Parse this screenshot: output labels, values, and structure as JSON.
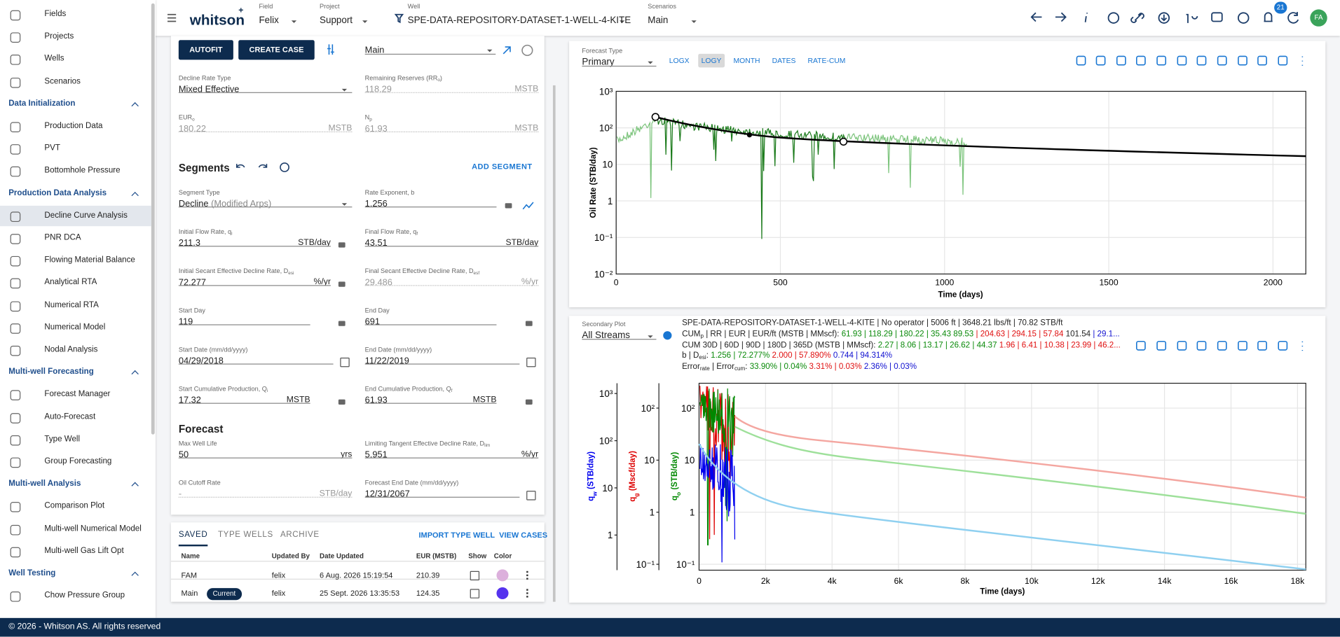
{
  "topbar": {
    "logo": "whitson",
    "logo_sup": "+",
    "selectors": [
      {
        "label": "Field",
        "value": "Felix"
      },
      {
        "label": "Project",
        "value": "Support"
      },
      {
        "label": "Well",
        "value": "SPE-DATA-REPOSITORY-DATASET-1-WELL-4-KITE"
      },
      {
        "label": "Scenarios",
        "value": "Main"
      }
    ],
    "notifications": 21,
    "avatar": "FA"
  },
  "sidebar": {
    "top": [
      {
        "label": "Fields"
      },
      {
        "label": "Projects"
      },
      {
        "label": "Wells"
      },
      {
        "label": "Scenarios"
      }
    ],
    "sections": [
      {
        "title": "Data Initialization",
        "items": [
          {
            "label": "Production Data"
          },
          {
            "label": "PVT"
          },
          {
            "label": "Bottomhole Pressure"
          }
        ]
      },
      {
        "title": "Production Data Analysis",
        "items": [
          {
            "label": "Decline Curve Analysis",
            "active": true
          },
          {
            "label": "PNR DCA"
          },
          {
            "label": "Flowing Material Balance"
          },
          {
            "label": "Analytical RTA"
          },
          {
            "label": "Numerical RTA"
          },
          {
            "label": "Numerical Model"
          },
          {
            "label": "Nodal Analysis"
          }
        ]
      },
      {
        "title": "Multi-well Forecasting",
        "items": [
          {
            "label": "Forecast Manager"
          },
          {
            "label": "Auto-Forecast"
          },
          {
            "label": "Type Well"
          },
          {
            "label": "Group Forecasting"
          }
        ]
      },
      {
        "title": "Multi-well Analysis",
        "items": [
          {
            "label": "Comparison Plot"
          },
          {
            "label": "Multi-well Numerical Model"
          },
          {
            "label": "Multi-well Gas Lift Opt"
          }
        ]
      },
      {
        "title": "Well Testing",
        "items": [
          {
            "label": "Chow Pressure Group"
          }
        ]
      }
    ]
  },
  "case_panel": {
    "buttons": [
      "AUTOFIT",
      "CREATE CASE"
    ],
    "case_select": "Main",
    "segments_title": "Segments",
    "add_segment": "ADD SEGMENT",
    "forecast_title": "Forecast",
    "fields": [
      {
        "label": [
          "Decline Rate Type"
        ],
        "value": "Mixed Effective"
      },
      {
        "label": [
          "Remaining Reserves (RR",
          "o",
          ")"
        ],
        "value": 118.29,
        "unit": "MSTB",
        "disabled": true
      },
      {
        "label": [
          "EUR",
          "o"
        ],
        "value": 180.22,
        "unit": "MSTB",
        "disabled": true
      },
      {
        "label": [
          "N",
          "p"
        ],
        "value": 61.93,
        "unit": "MSTB",
        "disabled": true
      },
      {
        "label": [
          "Segment Type"
        ],
        "value": "Decline",
        "note": "(Modified Arps)"
      },
      {
        "label": [
          "Rate Exponent, b"
        ],
        "value": 1.256
      },
      {
        "label": [
          "Initial Flow Rate, q",
          "i"
        ],
        "value": 211.3,
        "unit": "STB/day"
      },
      {
        "label": [
          "Final Flow Rate, q",
          "f"
        ],
        "value": 43.51,
        "unit": "STB/day"
      },
      {
        "label": [
          "Initial Secant Effective Decline Rate, D",
          "esi"
        ],
        "value": 72.277,
        "unit": "%/yr"
      },
      {
        "label": [
          "Final Secant Effective Decline Rate, D",
          "esf"
        ],
        "value": 29.486,
        "unit": "%/yr",
        "disabled": true
      },
      {
        "label": [
          "Start Day"
        ],
        "value": 119
      },
      {
        "label": [
          "End Day"
        ],
        "value": 691
      },
      {
        "label": [
          "Start Date (mm/dd/yyyy)"
        ],
        "value": "04/29/2018"
      },
      {
        "label": [
          "End Date (mm/dd/yyyy)"
        ],
        "value": "11/22/2019"
      },
      {
        "label": [
          "Start Cumulative Production, Q",
          "i"
        ],
        "value": 17.32,
        "unit": "MSTB"
      },
      {
        "label": [
          "End Cumulative Production, Q",
          "f"
        ],
        "value": 61.93,
        "unit": "MSTB"
      },
      {
        "label": [
          "Max Well Life"
        ],
        "value": 50,
        "unit": "yrs"
      },
      {
        "label": [
          "Limiting Tangent Effective Decline Rate, D",
          "lim"
        ],
        "value": 5.951,
        "unit": "%/yr"
      },
      {
        "label": [
          "Oil Cutoff Rate"
        ],
        "value": "-",
        "unit": "STB/day",
        "disabled": true
      },
      {
        "label": [
          "Forecast End Date (mm/dd/yyyy)"
        ],
        "value": "12/31/2067"
      }
    ]
  },
  "cases": {
    "tabs": [
      "SAVED",
      "TYPE WELLS",
      "ARCHIVE"
    ],
    "actions": [
      "IMPORT TYPE WELL",
      "VIEW CASES"
    ],
    "columns": [
      "Name",
      "Updated By",
      "Date Updated",
      "EUR (MSTB)",
      "Show",
      "Color"
    ],
    "rows": [
      {
        "name": "FAM",
        "updated_by": "felix",
        "date": "6 Aug. 2026 15:19:54",
        "eur": 210.39,
        "color": "#dcb0dc"
      },
      {
        "name": "Main",
        "badge": "Current",
        "updated_by": "felix",
        "date": "25 Sept. 2026 13:35:53",
        "eur": 124.35,
        "color": "#5533ee"
      }
    ]
  },
  "primary_plot": {
    "selector_label": "Forecast Type",
    "selector_value": "Primary",
    "toggles": [
      {
        "label": "LOGX"
      },
      {
        "label": "LOGY",
        "active": true
      },
      {
        "label": "MONTH"
      },
      {
        "label": "DATES"
      },
      {
        "label": "RATE-CUM"
      }
    ],
    "ylabel": "Oil Rate (STB/day)",
    "xlabel": "Time (days)",
    "xlim": [
      0,
      2100
    ],
    "xticks": [
      0,
      500,
      1000,
      1500,
      2000
    ],
    "ylim": [
      0.01,
      1000
    ],
    "log_y": true,
    "yticks": [
      {
        "value": 1000,
        "label": "10³"
      },
      {
        "value": 100,
        "label": "10²"
      },
      10,
      1,
      {
        "value": 0.1,
        "label": "10⁻¹"
      },
      {
        "value": 0.01,
        "label": "10⁻²"
      }
    ]
  },
  "secondary_plot": {
    "selector_label": "Secondary Plot",
    "selector_value": "All Streams",
    "info": [
      [
        {
          "text": "SPE-DATA-REPOSITORY-DATASET-1-WELL-4-KITE | No operator | 5006 ft | 3648.21 lbs/ft | 70.82 STB/ft",
          "color": "#222222"
        }
      ],
      [
        {
          "text": "CUM",
          "color": "#222222"
        },
        {
          "text": "p",
          "color": "#222222",
          "sub": true
        },
        {
          "text": " | RR | EUR | EUR/ft (MSTB | MMscf): ",
          "color": "#222222"
        },
        {
          "text": "61.93 | 118.29 | 180.22 | 35.43 89.53 ",
          "color": "#0a8a0a"
        },
        {
          "text": "| 204.63 | 294.15 | 57.84 ",
          "color": "#e01010"
        },
        {
          "text": "101.54 ",
          "color": "#222222"
        },
        {
          "text": "| 29.1...",
          "color": "#1010d0"
        }
      ],
      [
        {
          "text": "CUM 30D | 60D | 90D | 180D | 365D (MSTB | MMscf): ",
          "color": "#222222"
        },
        {
          "text": "2.27 | 8.06 | 13.17 | 26.62 | 44.37 ",
          "color": "#0a8a0a"
        },
        {
          "text": "1.96 | 6.41 | 10.38 | 23.99 | 46.2...",
          "color": "#e01010"
        }
      ],
      [
        {
          "text": "b | D",
          "color": "#222222"
        },
        {
          "text": "esi",
          "color": "#222222",
          "sub": true
        },
        {
          "text": ": ",
          "color": "#222222"
        },
        {
          "text": "1.256 | 72.277% ",
          "color": "#0a8a0a"
        },
        {
          "text": "2.000 | 57.890% ",
          "color": "#e01010"
        },
        {
          "text": "0.744 | 94.314%",
          "color": "#1010d0"
        }
      ],
      [
        {
          "text": "Error",
          "color": "#222222"
        },
        {
          "text": "rate",
          "color": "#222222",
          "sub": true
        },
        {
          "text": " | Error",
          "color": "#222222"
        },
        {
          "text": "cum",
          "color": "#222222",
          "sub": true
        },
        {
          "text": ": ",
          "color": "#222222"
        },
        {
          "text": "33.90% | 0.04% ",
          "color": "#0a8a0a"
        },
        {
          "text": "3.31% | 0.03% ",
          "color": "#e01010"
        },
        {
          "text": "2.36% | 0.03%",
          "color": "#1010d0"
        }
      ]
    ],
    "xlabel": "Time (days)",
    "xlim": [
      0,
      18250
    ],
    "log_y": true,
    "xticks": [
      0,
      {
        "value": 2000,
        "label": "2k"
      },
      {
        "value": 4000,
        "label": "4k"
      },
      {
        "value": 6000,
        "label": "6k"
      },
      {
        "value": 8000,
        "label": "8k"
      },
      {
        "value": 10000,
        "label": "10k"
      },
      {
        "value": 12000,
        "label": "12k"
      },
      {
        "value": 14000,
        "label": "14k"
      },
      {
        "value": 16000,
        "label": "16k"
      },
      {
        "value": 18000,
        "label": "18k"
      }
    ],
    "axes": [
      {
        "label": [
          "q",
          "w",
          " (STB/day)"
        ],
        "color": "#0000ee",
        "ylim": [
          0.18,
          1650
        ],
        "yticks": [
          {
            "value": 1000,
            "label": "10³"
          },
          {
            "value": 100,
            "label": "10²"
          },
          10,
          1
        ]
      },
      {
        "label": [
          "q",
          "g",
          " (Mscf/day)"
        ],
        "color": "#dd0000",
        "ylim": [
          0.077,
          300
        ],
        "yticks": [
          {
            "value": 100,
            "label": "10²"
          },
          10,
          1,
          {
            "value": 0.1,
            "label": "10⁻¹"
          }
        ]
      },
      {
        "label": [
          "q",
          "o",
          " (STB/day)"
        ],
        "color": "#008800",
        "ylim": [
          0.077,
          300
        ],
        "yticks": [
          {
            "value": 100,
            "label": "10²"
          },
          10,
          1,
          {
            "value": 0.1,
            "label": "10⁻¹"
          }
        ]
      }
    ]
  },
  "footer": "© 2026 - Whitson AS. All rights reserved"
}
